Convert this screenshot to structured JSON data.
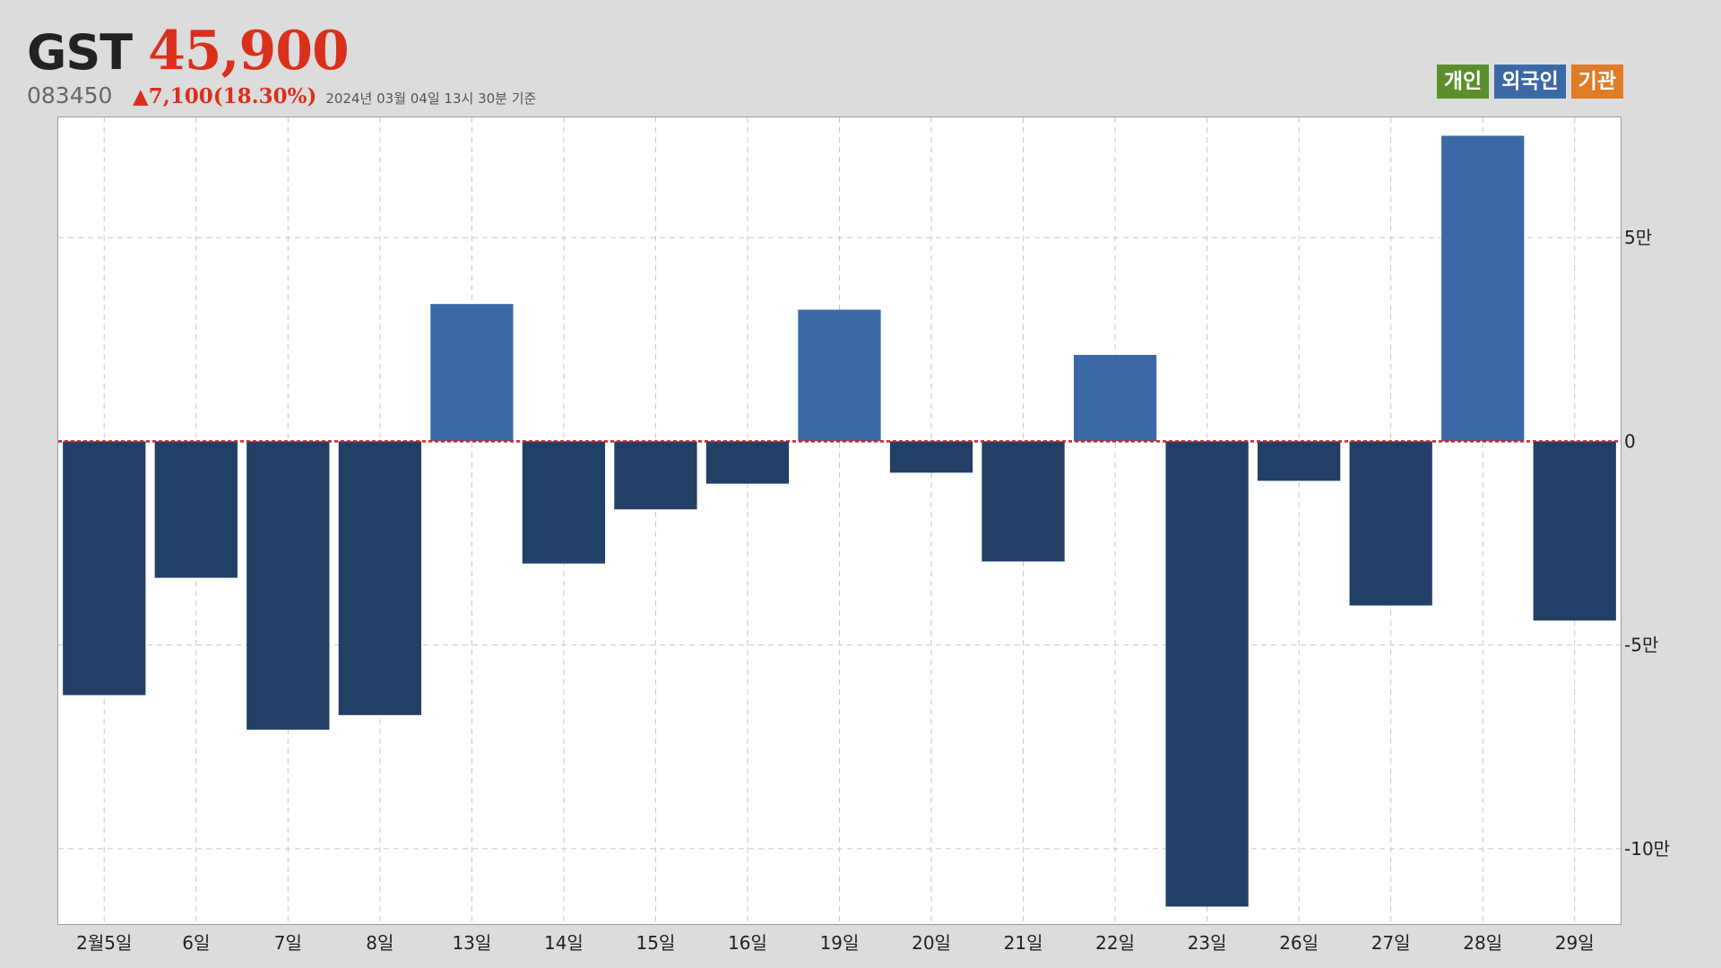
{
  "header": {
    "ticker": "GST",
    "price": "45,900",
    "code": "083450",
    "change": "▲7,100(18.30%)",
    "timestamp": "2024년 03월 04일 13시 30분 기준"
  },
  "legend": [
    {
      "label": "개인",
      "color": "#5b8f2e"
    },
    {
      "label": "외국인",
      "color": "#3b69a6"
    },
    {
      "label": "기관",
      "color": "#e07b28"
    }
  ],
  "colors": {
    "positive_bar": "#3b69a6",
    "negative_bar": "#224066",
    "zero_line": "#cc2222",
    "grid": "#c8c8c8"
  },
  "chart_data": {
    "type": "bar",
    "series_name": "외국인",
    "categories": [
      "2월5일",
      "6일",
      "7일",
      "8일",
      "13일",
      "14일",
      "15일",
      "16일",
      "19일",
      "20일",
      "21일",
      "22일",
      "23일",
      "26일",
      "27일",
      "28일",
      "29일"
    ],
    "values": [
      -62300,
      -33500,
      -70800,
      -67200,
      33700,
      -30000,
      -16700,
      -10400,
      32300,
      -7700,
      -29500,
      21200,
      -114200,
      -9700,
      -40300,
      75000,
      -44000
    ],
    "ylim": [
      -118500,
      79500
    ],
    "yticks": [
      50000,
      0,
      -50000,
      -100000
    ],
    "ytick_labels": [
      "5만",
      "0",
      "-5만",
      "-10만"
    ],
    "y_axis_side": "right",
    "grid": true,
    "zero_line": "dashed",
    "legend_position": "top-right"
  }
}
